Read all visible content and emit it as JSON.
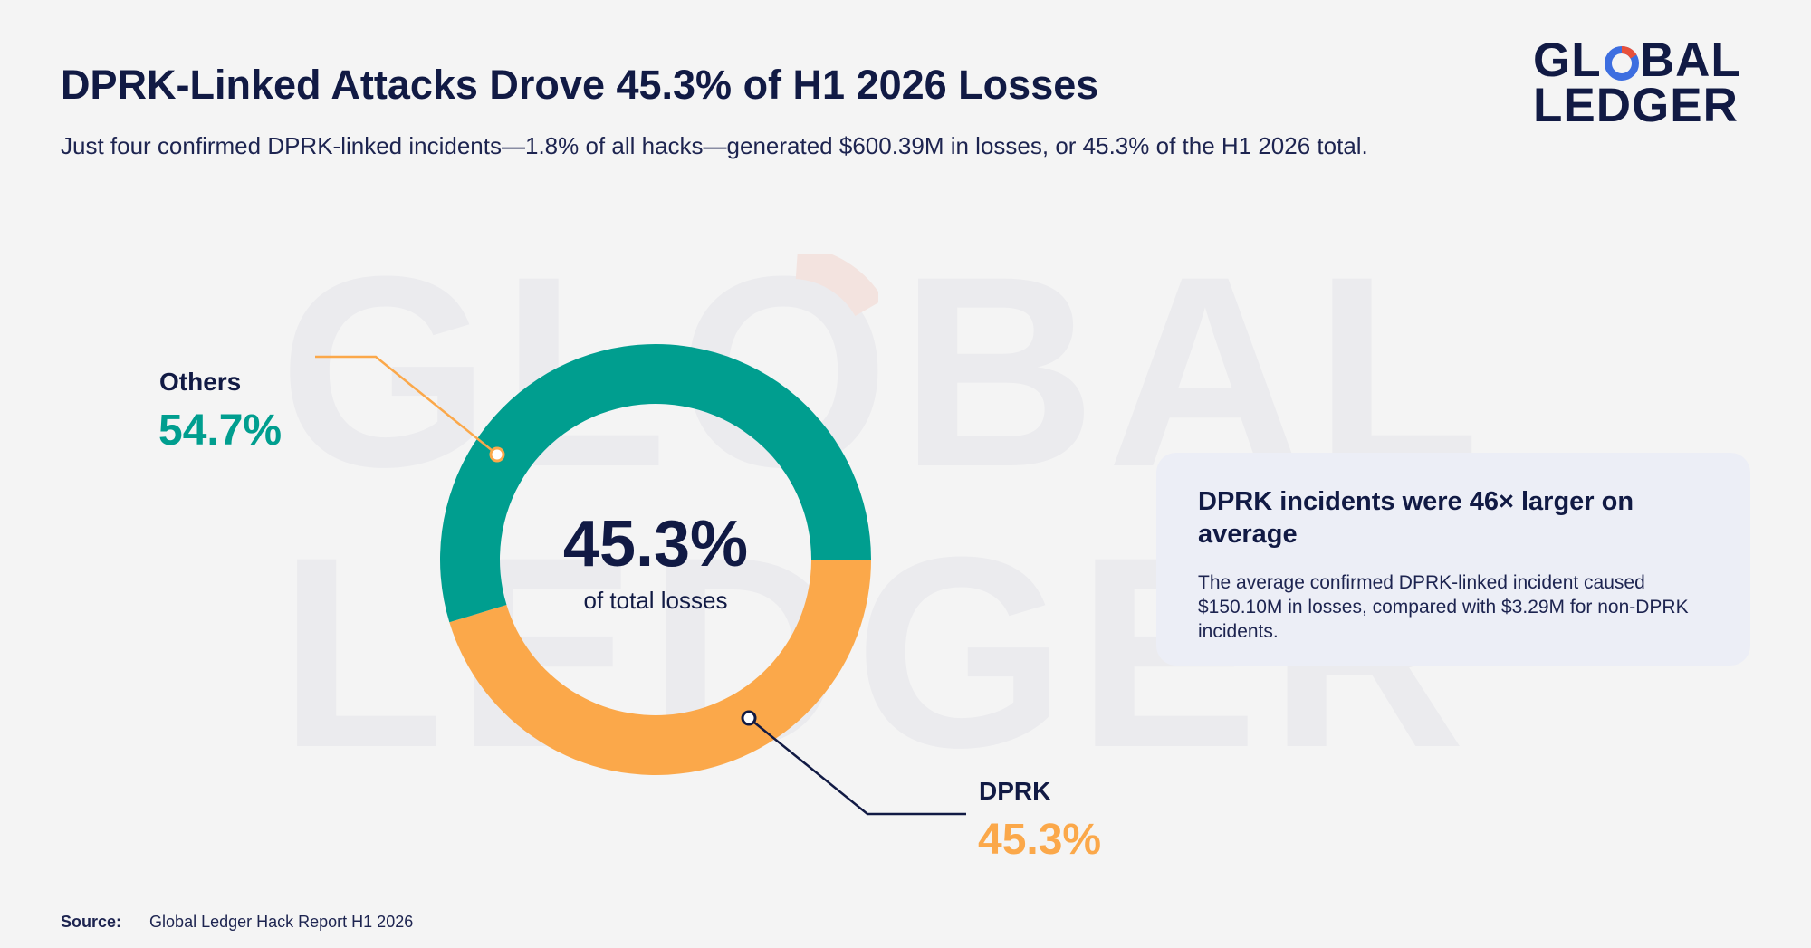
{
  "header": {
    "title": "DPRK-Linked Attacks Drove 45.3% of H1 2026 Losses",
    "subtitle": "Just four confirmed DPRK-linked incidents—1.8% of all hacks—generated $600.39M in losses, or 45.3% of the H1 2026 total."
  },
  "logo": {
    "line1_a": "GL",
    "line1_o": "O",
    "line1_b": "BAL",
    "line2": "LEDGER"
  },
  "watermark": {
    "line1": "GLOBAL",
    "line2": "LEDGER"
  },
  "chart_data": {
    "type": "pie",
    "style": "donut",
    "slices": [
      {
        "label": "DPRK",
        "value": 45.3,
        "display": "45.3%",
        "color": "#fba84a"
      },
      {
        "label": "Others",
        "value": 54.7,
        "display": "54.7%",
        "color": "#009e8f"
      }
    ],
    "center_value": "45.3%",
    "center_label": "of total losses"
  },
  "callout": {
    "title": "DPRK incidents were 46× larger on average",
    "body": "The average confirmed DPRK-linked incident caused $150.10M in losses, compared with $3.29M for non-DPRK incidents."
  },
  "source": {
    "label": "Source:",
    "text": "Global Ledger Hack Report H1 2026"
  },
  "colors": {
    "navy": "#111a44",
    "teal": "#009e8f",
    "orange": "#fba84a",
    "background": "#f4f4f4",
    "card": "#eceef6",
    "logo_accent_red": "#e8503a",
    "logo_accent_blue": "#3d6ee0"
  }
}
